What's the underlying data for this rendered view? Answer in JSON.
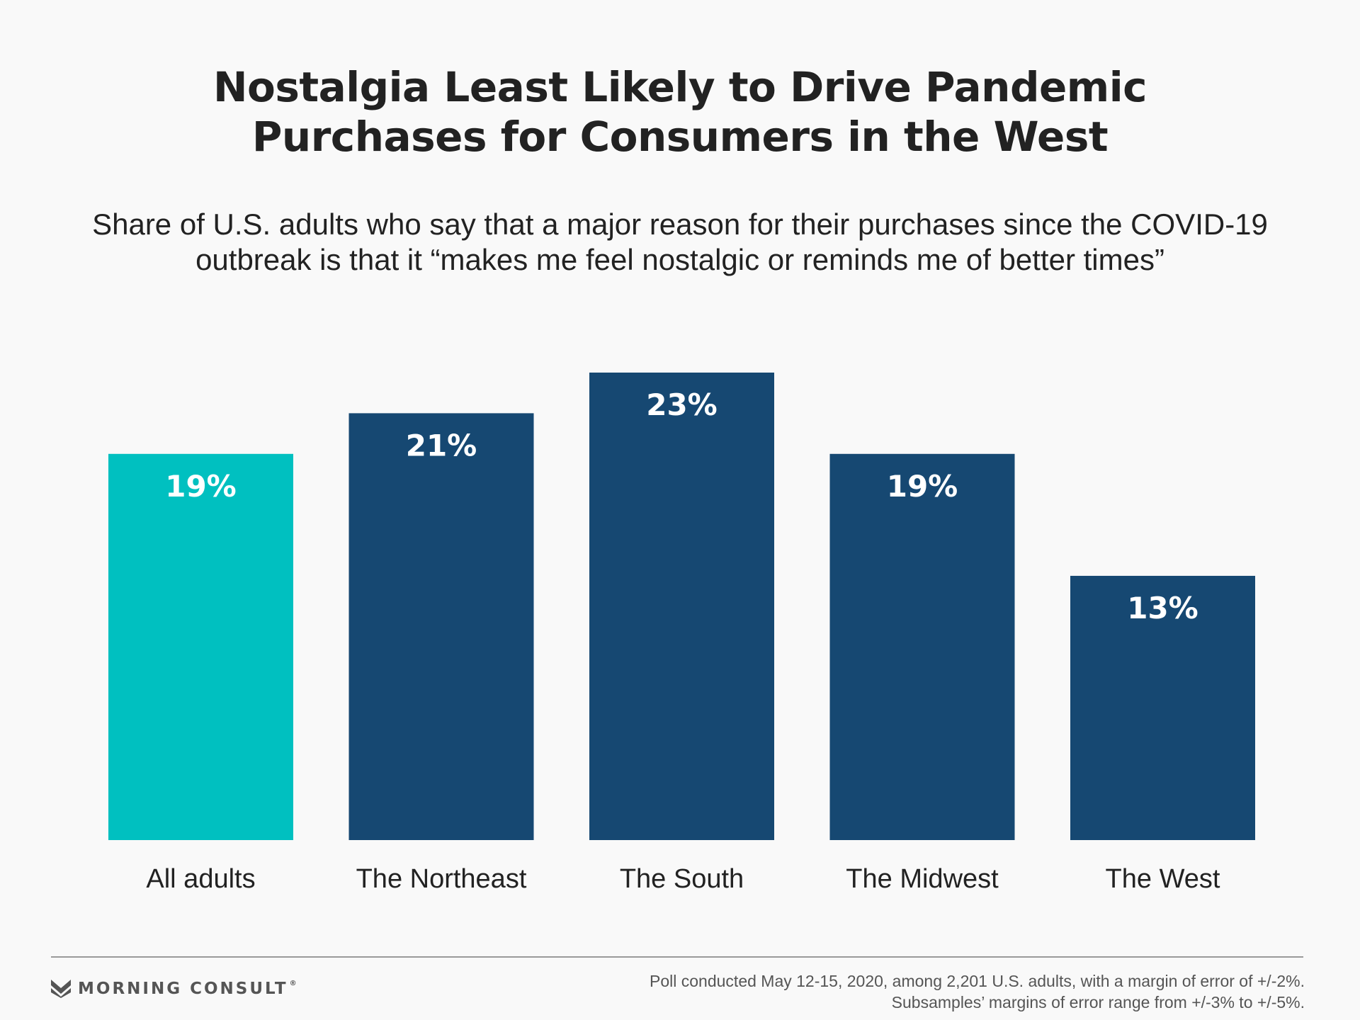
{
  "header": {
    "title_line1": "Nostalgia Least Likely to Drive Pandemic",
    "title_line2": "Purchases for Consumers in the West",
    "subtitle_line1": "Share of U.S. adults who say that a major reason for their purchases since the COVID-19",
    "subtitle_line2": "outbreak is that it “makes me feel nostalgic or reminds me of better times”"
  },
  "chart_data": {
    "type": "bar",
    "title": "Nostalgia Least Likely to Drive Pandemic Purchases for Consumers in the West",
    "subtitle": "Share of U.S. adults who say that a major reason for their purchases since the COVID-19 outbreak is that it “makes me feel nostalgic or reminds me of better times”",
    "categories": [
      "All adults",
      "The Northeast",
      "The South",
      "The Midwest",
      "The West"
    ],
    "values": [
      19,
      21,
      23,
      19,
      13
    ],
    "data_labels": [
      "19%",
      "21%",
      "23%",
      "19%",
      "13%"
    ],
    "unit": "%",
    "ylim": [
      0,
      23
    ],
    "grid": false,
    "legend": "none",
    "colors": [
      "#00c0c0",
      "#164872",
      "#164872",
      "#164872",
      "#164872"
    ],
    "label_color": "#ffffff"
  },
  "footer": {
    "brand": "MORNING CONSULT",
    "brand_mark": "®",
    "brand_icon": "morning-consult-logo-icon",
    "note_line1": "Poll conducted May 12-15, 2020, among 2,201 U.S. adults, with a margin of error of +/-2%.",
    "note_line2": "Subsamples’ margins of error range from +/-3% to +/-5%."
  }
}
